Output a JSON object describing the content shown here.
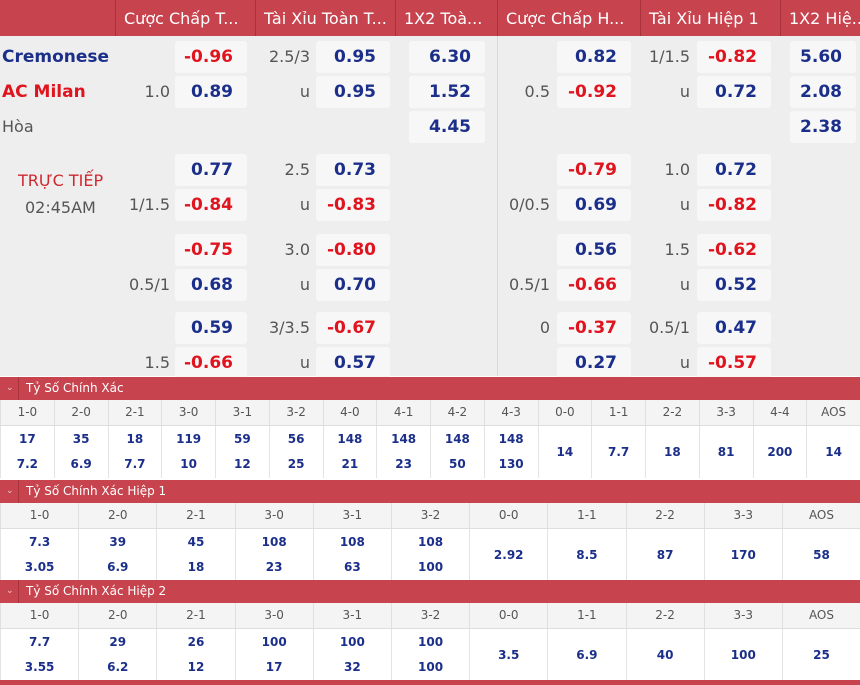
{
  "header": [
    "Cược Chấp T...",
    "Tài Xỉu Toàn T...",
    "1X2 Toà...",
    "Cược Chấp H...",
    "Tài Xỉu Hiệp 1",
    "1X2 Hiệ..."
  ],
  "teams": {
    "home": "Cremonese",
    "away": "AC Milan",
    "draw": "Hòa"
  },
  "live": {
    "status": "TRỰC TIẾP",
    "time": "02:45AM"
  },
  "colors": {
    "accent": "#c7444f",
    "positive": "#1b2f8a",
    "negative": "#e0141e",
    "home": "#1b2f8a",
    "away": "#e0141e"
  },
  "rows": [
    {
      "fh": "",
      "fo": "-0.96",
      "ol": "2.5/3",
      "oo": "0.95",
      "x": "6.30",
      "hh": "",
      "ho": "0.82",
      "hl": "1/1.5",
      "hoo": "-0.82",
      "hx": "5.60"
    },
    {
      "fh": "1.0",
      "fo": "0.89",
      "ol": "u",
      "oo": "0.95",
      "x": "1.52",
      "hh": "0.5",
      "ho": "-0.92",
      "hl": "u",
      "hoo": "0.72",
      "hx": "2.08"
    },
    {
      "fh": "",
      "fo": "",
      "ol": "",
      "oo": "",
      "x": "4.45",
      "hh": "",
      "ho": "",
      "hl": "",
      "hoo": "",
      "hx": "2.38"
    },
    {
      "fh": "",
      "fo": "0.77",
      "ol": "2.5",
      "oo": "0.73",
      "x": "",
      "hh": "",
      "ho": "-0.79",
      "hl": "1.0",
      "hoo": "0.72",
      "hx": ""
    },
    {
      "fh": "1/1.5",
      "fo": "-0.84",
      "ol": "u",
      "oo": "-0.83",
      "x": "",
      "hh": "0/0.5",
      "ho": "0.69",
      "hl": "u",
      "hoo": "-0.82",
      "hx": ""
    },
    {
      "fh": "",
      "fo": "-0.75",
      "ol": "3.0",
      "oo": "-0.80",
      "x": "",
      "hh": "",
      "ho": "0.56",
      "hl": "1.5",
      "hoo": "-0.62",
      "hx": ""
    },
    {
      "fh": "0.5/1",
      "fo": "0.68",
      "ol": "u",
      "oo": "0.70",
      "x": "",
      "hh": "0.5/1",
      "ho": "-0.66",
      "hl": "u",
      "hoo": "0.52",
      "hx": ""
    },
    {
      "fh": "",
      "fo": "0.59",
      "ol": "3/3.5",
      "oo": "-0.67",
      "x": "",
      "hh": "0",
      "ho": "-0.37",
      "hl": "0.5/1",
      "hoo": "0.47",
      "hx": ""
    },
    {
      "fh": "1.5",
      "fo": "-0.66",
      "ol": "u",
      "oo": "0.57",
      "x": "",
      "hh": "",
      "ho": "0.27",
      "hl": "u",
      "hoo": "-0.57",
      "hx": ""
    }
  ],
  "sections": [
    {
      "title": "Tỷ Số Chính Xác",
      "cols": [
        "1-0",
        "2-0",
        "2-1",
        "3-0",
        "3-1",
        "3-2",
        "4-0",
        "4-1",
        "4-2",
        "4-3",
        "0-0",
        "1-1",
        "2-2",
        "3-3",
        "4-4",
        "AOS"
      ],
      "vals": [
        [
          "17",
          "7.2"
        ],
        [
          "35",
          "6.9"
        ],
        [
          "18",
          "7.7"
        ],
        [
          "119",
          "10"
        ],
        [
          "59",
          "12"
        ],
        [
          "56",
          "25"
        ],
        [
          "148",
          "21"
        ],
        [
          "148",
          "23"
        ],
        [
          "148",
          "50"
        ],
        [
          "148",
          "130"
        ],
        [
          "14"
        ],
        [
          "7.7"
        ],
        [
          "18"
        ],
        [
          "81"
        ],
        [
          "200"
        ],
        [
          "14"
        ]
      ]
    },
    {
      "title": "Tỷ Số Chính Xác Hiệp 1",
      "cols": [
        "1-0",
        "2-0",
        "2-1",
        "3-0",
        "3-1",
        "3-2",
        "0-0",
        "1-1",
        "2-2",
        "3-3",
        "AOS"
      ],
      "vals": [
        [
          "7.3",
          "3.05"
        ],
        [
          "39",
          "6.9"
        ],
        [
          "45",
          "18"
        ],
        [
          "108",
          "23"
        ],
        [
          "108",
          "63"
        ],
        [
          "108",
          "100"
        ],
        [
          "2.92"
        ],
        [
          "8.5"
        ],
        [
          "87"
        ],
        [
          "170"
        ],
        [
          "58"
        ]
      ]
    },
    {
      "title": "Tỷ Số Chính Xác Hiệp 2",
      "cols": [
        "1-0",
        "2-0",
        "2-1",
        "3-0",
        "3-1",
        "3-2",
        "0-0",
        "1-1",
        "2-2",
        "3-3",
        "AOS"
      ],
      "vals": [
        [
          "7.7",
          "3.55"
        ],
        [
          "29",
          "6.2"
        ],
        [
          "26",
          "12"
        ],
        [
          "100",
          "17"
        ],
        [
          "100",
          "32"
        ],
        [
          "100",
          "100"
        ],
        [
          "3.5"
        ],
        [
          "6.9"
        ],
        [
          "40"
        ],
        [
          "100"
        ],
        [
          "25"
        ]
      ]
    }
  ]
}
